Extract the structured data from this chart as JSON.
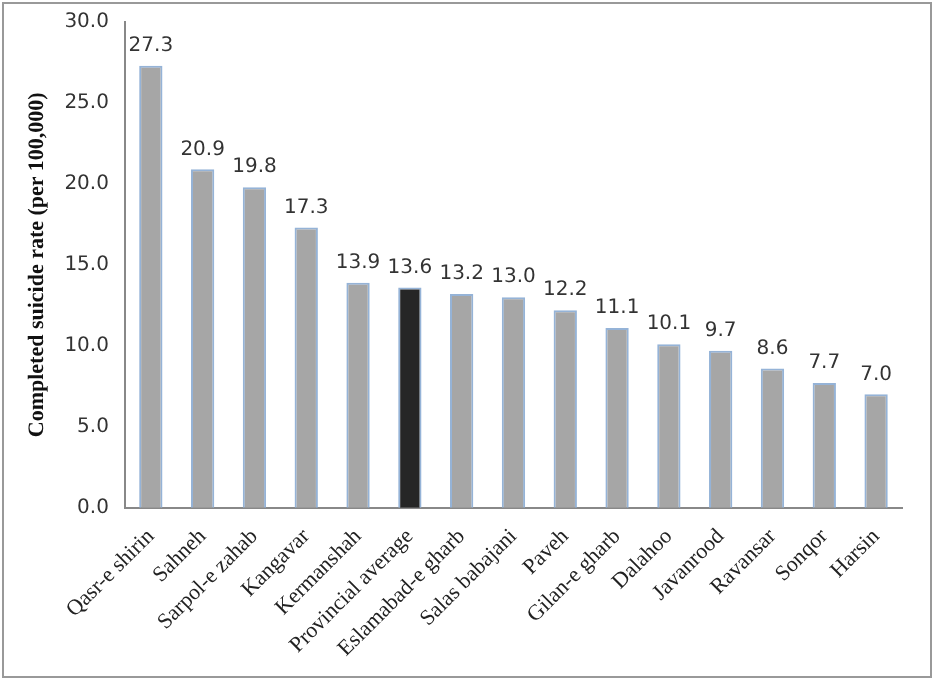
{
  "chart_data": {
    "type": "bar",
    "ylabel": "Completed suicide rate (per 100,000)",
    "categories": [
      "Qasr-e shirin",
      "Sahneh",
      "Sarpol-e zahab",
      "Kangavar",
      "Kermanshah",
      "Provincial average",
      "Eslamabad-e gharb",
      "Salas babajani",
      "Paveh",
      "Gilan-e gharb",
      "Dalahoo",
      "Javanrood",
      "Ravansar",
      "Sonqor",
      "Harsin"
    ],
    "values": [
      27.3,
      20.9,
      19.8,
      17.3,
      13.9,
      13.6,
      13.2,
      13.0,
      12.2,
      11.1,
      10.1,
      9.7,
      8.6,
      7.7,
      7.0
    ],
    "value_labels": [
      "27.3",
      "20.9",
      "19.8",
      "17.3",
      "13.9",
      "13.6",
      "13.2",
      "13.0",
      "12.2",
      "11.1",
      "10.1",
      "9.7",
      "8.6",
      "7.7",
      "7.0"
    ],
    "colors": [
      "#a6a6a6",
      "#a6a6a6",
      "#a6a6a6",
      "#a6a6a6",
      "#a6a6a6",
      "#262626",
      "#a6a6a6",
      "#a6a6a6",
      "#a6a6a6",
      "#a6a6a6",
      "#a6a6a6",
      "#a6a6a6",
      "#a6a6a6",
      "#a6a6a6",
      "#a6a6a6"
    ],
    "ylim": [
      0,
      30
    ],
    "yticks": [
      {
        "value": 0,
        "label": "0.0"
      },
      {
        "value": 5,
        "label": "5.0"
      },
      {
        "value": 10,
        "label": "10.0"
      },
      {
        "value": 15,
        "label": "15.0"
      },
      {
        "value": 20,
        "label": "20.0"
      },
      {
        "value": 25,
        "label": "25.0"
      },
      {
        "value": 30,
        "label": "30.0"
      }
    ],
    "grid": false,
    "legend": false
  }
}
